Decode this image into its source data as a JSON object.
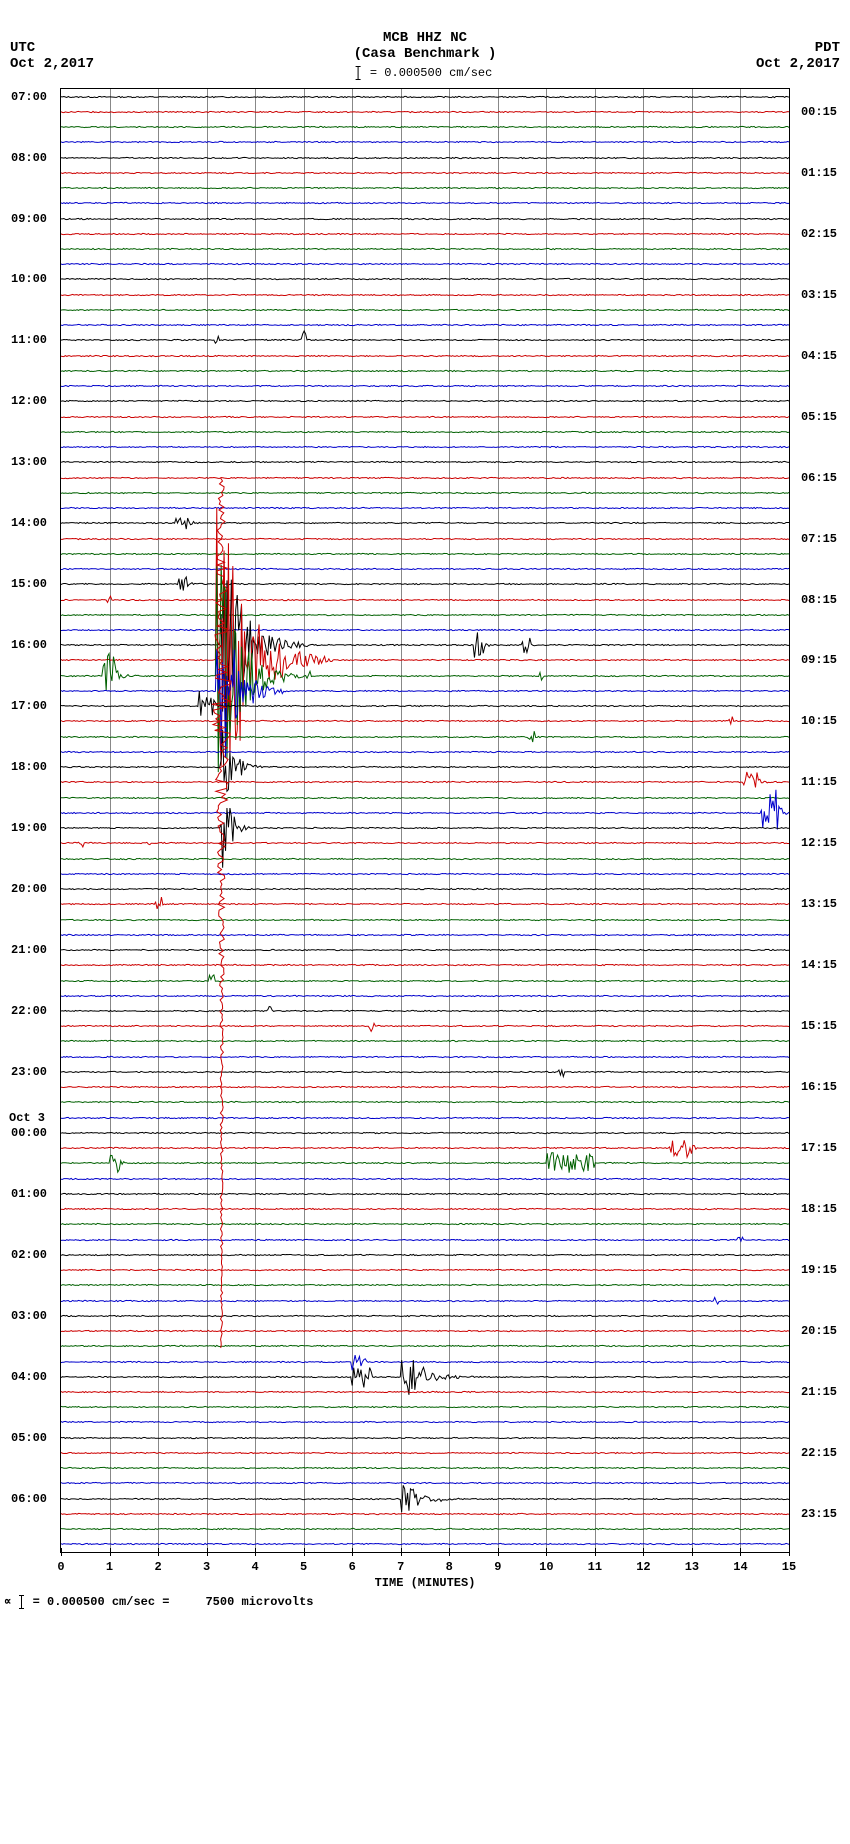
{
  "header": {
    "left_tz": "UTC",
    "left_date": "Oct 2,2017",
    "right_tz": "PDT",
    "right_date": "Oct 2,2017",
    "station": "MCB HHZ NC",
    "location": "(Casa Benchmark )",
    "scale_text": "= 0.000500 cm/sec"
  },
  "footer": {
    "text1": "= 0.000500 cm/sec =",
    "text2": "7500 microvolts"
  },
  "plot": {
    "background_color": "#ffffff",
    "grid_color": "#888888",
    "border_color": "#000000",
    "trace_colors": [
      "#000000",
      "#cc0000",
      "#006000",
      "#0000cc"
    ],
    "n_traces": 96,
    "traces_per_hour": 4,
    "x_min": 0,
    "x_max": 15,
    "x_tick_step": 1,
    "x_axis_title": "TIME (MINUTES)",
    "y_labels_left": [
      {
        "t": 0,
        "label": "07:00"
      },
      {
        "t": 4,
        "label": "08:00"
      },
      {
        "t": 8,
        "label": "09:00"
      },
      {
        "t": 12,
        "label": "10:00"
      },
      {
        "t": 16,
        "label": "11:00"
      },
      {
        "t": 20,
        "label": "12:00"
      },
      {
        "t": 24,
        "label": "13:00"
      },
      {
        "t": 28,
        "label": "14:00"
      },
      {
        "t": 32,
        "label": "15:00"
      },
      {
        "t": 36,
        "label": "16:00"
      },
      {
        "t": 40,
        "label": "17:00"
      },
      {
        "t": 44,
        "label": "18:00"
      },
      {
        "t": 48,
        "label": "19:00"
      },
      {
        "t": 52,
        "label": "20:00"
      },
      {
        "t": 56,
        "label": "21:00"
      },
      {
        "t": 60,
        "label": "22:00"
      },
      {
        "t": 64,
        "label": "23:00"
      },
      {
        "t": 68,
        "label": "00:00"
      },
      {
        "t": 72,
        "label": "01:00"
      },
      {
        "t": 76,
        "label": "02:00"
      },
      {
        "t": 80,
        "label": "03:00"
      },
      {
        "t": 84,
        "label": "04:00"
      },
      {
        "t": 88,
        "label": "05:00"
      },
      {
        "t": 92,
        "label": "06:00"
      }
    ],
    "day_label": {
      "t": 67,
      "label": "Oct 3"
    },
    "y_labels_right": [
      {
        "t": 1,
        "label": "00:15"
      },
      {
        "t": 5,
        "label": "01:15"
      },
      {
        "t": 9,
        "label": "02:15"
      },
      {
        "t": 13,
        "label": "03:15"
      },
      {
        "t": 17,
        "label": "04:15"
      },
      {
        "t": 21,
        "label": "05:15"
      },
      {
        "t": 25,
        "label": "06:15"
      },
      {
        "t": 29,
        "label": "07:15"
      },
      {
        "t": 33,
        "label": "08:15"
      },
      {
        "t": 37,
        "label": "09:15"
      },
      {
        "t": 41,
        "label": "10:15"
      },
      {
        "t": 45,
        "label": "11:15"
      },
      {
        "t": 49,
        "label": "12:15"
      },
      {
        "t": 53,
        "label": "13:15"
      },
      {
        "t": 57,
        "label": "14:15"
      },
      {
        "t": 61,
        "label": "15:15"
      },
      {
        "t": 65,
        "label": "16:15"
      },
      {
        "t": 69,
        "label": "17:15"
      },
      {
        "t": 73,
        "label": "18:15"
      },
      {
        "t": 77,
        "label": "19:15"
      },
      {
        "t": 81,
        "label": "20:15"
      },
      {
        "t": 85,
        "label": "21:15"
      },
      {
        "t": 89,
        "label": "22:15"
      },
      {
        "t": 93,
        "label": "23:15"
      }
    ],
    "noise_amplitude": 1.2,
    "events": [
      {
        "trace": 16,
        "x": 3.2,
        "width": 0.05,
        "amp": 6,
        "decay": 1,
        "type": "spike"
      },
      {
        "trace": 16,
        "x": 5.0,
        "width": 0.05,
        "amp": 10,
        "decay": 1,
        "type": "spike"
      },
      {
        "trace": 28,
        "x": 2.5,
        "width": 0.15,
        "amp": 8,
        "decay": 3,
        "type": "pick"
      },
      {
        "trace": 32,
        "x": 2.5,
        "width": 0.1,
        "amp": 10,
        "decay": 2,
        "type": "pick"
      },
      {
        "trace": 33,
        "x": 1.0,
        "width": 0.05,
        "amp": 4,
        "decay": 1,
        "type": "spike"
      },
      {
        "trace": 36,
        "x": 3.3,
        "width": 0.6,
        "amp": 120,
        "decay": 30,
        "type": "quake"
      },
      {
        "trace": 36,
        "x": 8.6,
        "width": 0.1,
        "amp": 15,
        "decay": 3,
        "type": "pick"
      },
      {
        "trace": 36,
        "x": 9.6,
        "width": 0.1,
        "amp": 10,
        "decay": 3,
        "type": "pick"
      },
      {
        "trace": 37,
        "x": 3.2,
        "width": 0.8,
        "amp": 200,
        "decay": 60,
        "type": "quake"
      },
      {
        "trace": 38,
        "x": 3.2,
        "width": 0.6,
        "amp": 150,
        "decay": 40,
        "type": "quake"
      },
      {
        "trace": 38,
        "x": 5.1,
        "width": 0.05,
        "amp": 5,
        "decay": 1,
        "type": "spike"
      },
      {
        "trace": 38,
        "x": 9.9,
        "width": 0.05,
        "amp": 6,
        "decay": 1,
        "type": "spike"
      },
      {
        "trace": 38,
        "x": 1.0,
        "width": 0.15,
        "amp": 25,
        "decay": 4,
        "type": "pick"
      },
      {
        "trace": 39,
        "x": 3.2,
        "width": 0.5,
        "amp": 120,
        "decay": 35,
        "type": "quake"
      },
      {
        "trace": 40,
        "x": 3.0,
        "width": 0.15,
        "amp": 15,
        "decay": 3,
        "type": "pick"
      },
      {
        "trace": 41,
        "x": 13.8,
        "width": 0.05,
        "amp": 6,
        "decay": 1,
        "type": "spike"
      },
      {
        "trace": 42,
        "x": 9.7,
        "width": 0.08,
        "amp": 8,
        "decay": 2,
        "type": "pick"
      },
      {
        "trace": 44,
        "x": 3.3,
        "width": 0.3,
        "amp": 60,
        "decay": 20,
        "type": "quake"
      },
      {
        "trace": 45,
        "x": 14.2,
        "width": 0.15,
        "amp": 15,
        "decay": 3,
        "type": "pick"
      },
      {
        "trace": 47,
        "x": 14.6,
        "width": 0.2,
        "amp": 25,
        "decay": 4,
        "type": "pick"
      },
      {
        "trace": 48,
        "x": 3.3,
        "width": 0.2,
        "amp": 80,
        "decay": 15,
        "type": "quake"
      },
      {
        "trace": 49,
        "x": 0.4,
        "width": 0.05,
        "amp": 4,
        "decay": 1,
        "type": "spike"
      },
      {
        "trace": 49,
        "x": 1.8,
        "width": 0.05,
        "amp": 4,
        "decay": 1,
        "type": "spike"
      },
      {
        "trace": 53,
        "x": 2.0,
        "width": 0.08,
        "amp": 8,
        "decay": 2,
        "type": "pick"
      },
      {
        "trace": 58,
        "x": 3.1,
        "width": 0.05,
        "amp": 6,
        "decay": 1,
        "type": "spike"
      },
      {
        "trace": 60,
        "x": 4.3,
        "width": 0.05,
        "amp": 6,
        "decay": 1,
        "type": "spike"
      },
      {
        "trace": 61,
        "x": 6.4,
        "width": 0.05,
        "amp": 6,
        "decay": 1,
        "type": "spike"
      },
      {
        "trace": 64,
        "x": 10.3,
        "width": 0.05,
        "amp": 4,
        "decay": 1,
        "type": "spike"
      },
      {
        "trace": 69,
        "x": 12.5,
        "width": 0.6,
        "amp": 10,
        "decay": 8,
        "type": "noise"
      },
      {
        "trace": 70,
        "x": 1.1,
        "width": 0.1,
        "amp": 12,
        "decay": 2,
        "type": "pick"
      },
      {
        "trace": 70,
        "x": 10.0,
        "width": 1.0,
        "amp": 10,
        "decay": 8,
        "type": "noise"
      },
      {
        "trace": 75,
        "x": 14.0,
        "width": 0.05,
        "amp": 4,
        "decay": 1,
        "type": "spike"
      },
      {
        "trace": 79,
        "x": 13.5,
        "width": 0.05,
        "amp": 4,
        "decay": 1,
        "type": "spike"
      },
      {
        "trace": 83,
        "x": 6.0,
        "width": 0.3,
        "amp": 8,
        "decay": 4,
        "type": "noise"
      },
      {
        "trace": 84,
        "x": 7.0,
        "width": 0.5,
        "amp": 35,
        "decay": 10,
        "type": "quake"
      },
      {
        "trace": 84,
        "x": 6.0,
        "width": 0.4,
        "amp": 10,
        "decay": 6,
        "type": "noise"
      },
      {
        "trace": 92,
        "x": 7.0,
        "width": 0.5,
        "amp": 20,
        "decay": 8,
        "type": "quake"
      }
    ],
    "big_event_vertical": {
      "x": 3.3,
      "from_trace": 25,
      "to_trace": 82,
      "color": "#cc0000"
    }
  },
  "label_fontsize": 12,
  "title_fontsize": 14
}
